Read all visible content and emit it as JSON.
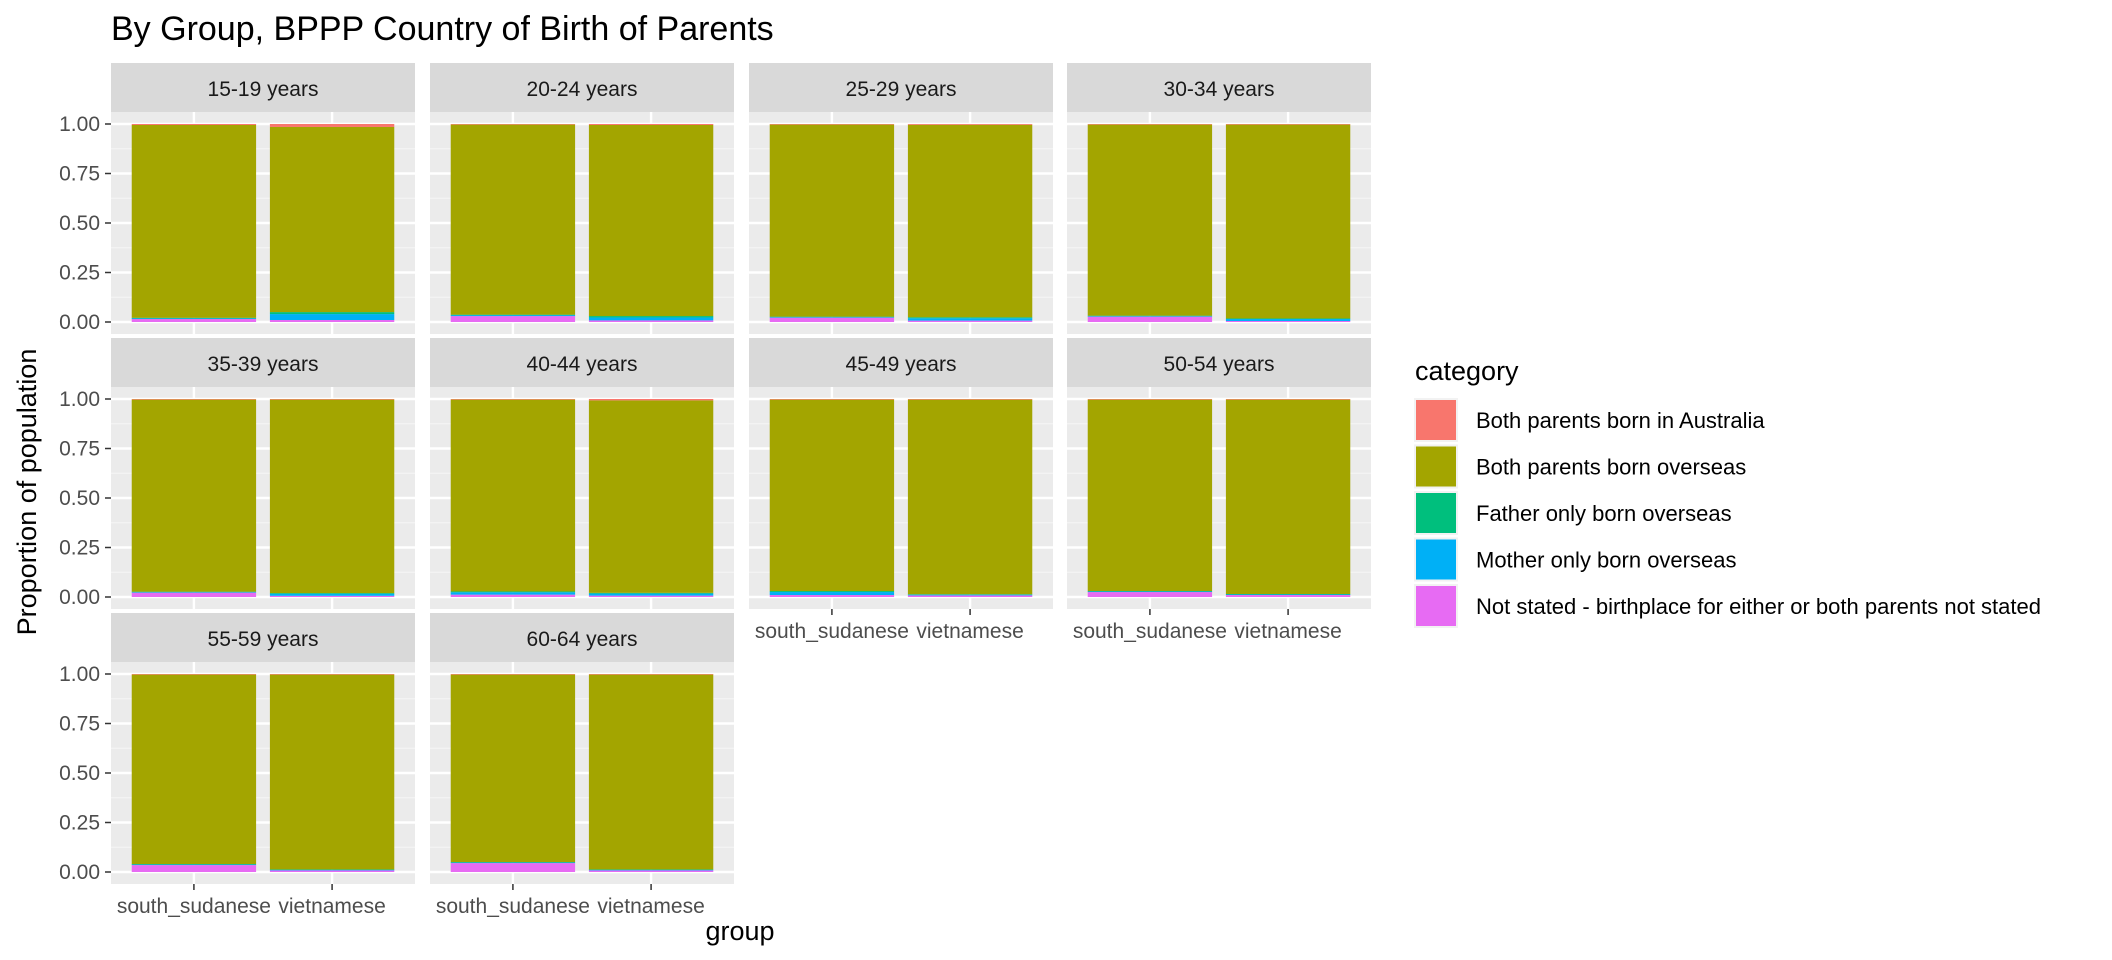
{
  "chart_data": {
    "type": "bar",
    "stacked": true,
    "title": "By Group,  BPPP Country of Birth of Parents",
    "xlabel": "group",
    "ylabel": "Proportion of population",
    "ylim": [
      0,
      1
    ],
    "yticks": [
      "0.00",
      "0.25",
      "0.50",
      "0.75",
      "1.00"
    ],
    "categories": [
      "south_sudanese",
      "vietnamese"
    ],
    "grid": true,
    "legend": {
      "title": "category",
      "position": "right",
      "entries": [
        {
          "label": "Both parents born in Australia",
          "color": "#F8766D"
        },
        {
          "label": "Both parents born overseas",
          "color": "#A3A500"
        },
        {
          "label": "Father only born overseas",
          "color": "#00BF7D"
        },
        {
          "label": "Mother only born overseas",
          "color": "#00B0F6"
        },
        {
          "label": "Not stated - birthplace for either or both parents not stated",
          "color": "#E76BF3"
        }
      ]
    },
    "stack_order": [
      "Not stated - birthplace for either or both parents not stated",
      "Mother only born overseas",
      "Father only born overseas",
      "Both parents born overseas",
      "Both parents born in Australia"
    ],
    "facets": [
      {
        "label": "15-19 years",
        "bars": [
          {
            "group": "south_sudanese",
            "values": {
              "Not stated - birthplace for either or both parents not stated": 0.015,
              "Mother only born overseas": 0.004,
              "Father only born overseas": 0.002,
              "Both parents born overseas": 0.974,
              "Both parents born in Australia": 0.005
            }
          },
          {
            "group": "vietnamese",
            "values": {
              "Not stated - birthplace for either or both parents not stated": 0.01,
              "Mother only born overseas": 0.03,
              "Father only born overseas": 0.01,
              "Both parents born overseas": 0.935,
              "Both parents born in Australia": 0.015
            }
          }
        ]
      },
      {
        "label": "20-24 years",
        "bars": [
          {
            "group": "south_sudanese",
            "values": {
              "Not stated - birthplace for either or both parents not stated": 0.03,
              "Mother only born overseas": 0.005,
              "Father only born overseas": 0.002,
              "Both parents born overseas": 0.96,
              "Both parents born in Australia": 0.003
            }
          },
          {
            "group": "vietnamese",
            "values": {
              "Not stated - birthplace for either or both parents not stated": 0.008,
              "Mother only born overseas": 0.015,
              "Father only born overseas": 0.007,
              "Both parents born overseas": 0.965,
              "Both parents born in Australia": 0.005
            }
          }
        ]
      },
      {
        "label": "25-29 years",
        "bars": [
          {
            "group": "south_sudanese",
            "values": {
              "Not stated - birthplace for either or both parents not stated": 0.022,
              "Mother only born overseas": 0.003,
              "Father only born overseas": 0.002,
              "Both parents born overseas": 0.97,
              "Both parents born in Australia": 0.003
            }
          },
          {
            "group": "vietnamese",
            "values": {
              "Not stated - birthplace for either or both parents not stated": 0.007,
              "Mother only born overseas": 0.012,
              "Father only born overseas": 0.005,
              "Both parents born overseas": 0.972,
              "Both parents born in Australia": 0.004
            }
          }
        ]
      },
      {
        "label": "30-34 years",
        "bars": [
          {
            "group": "south_sudanese",
            "values": {
              "Not stated - birthplace for either or both parents not stated": 0.027,
              "Mother only born overseas": 0.003,
              "Father only born overseas": 0.002,
              "Both parents born overseas": 0.965,
              "Both parents born in Australia": 0.003
            }
          },
          {
            "group": "vietnamese",
            "values": {
              "Not stated - birthplace for either or both parents not stated": 0.005,
              "Mother only born overseas": 0.01,
              "Father only born overseas": 0.003,
              "Both parents born overseas": 0.979,
              "Both parents born in Australia": 0.003
            }
          }
        ]
      },
      {
        "label": "35-39 years",
        "bars": [
          {
            "group": "south_sudanese",
            "values": {
              "Not stated - birthplace for either or both parents not stated": 0.022,
              "Mother only born overseas": 0.003,
              "Father only born overseas": 0.002,
              "Both parents born overseas": 0.97,
              "Both parents born in Australia": 0.003
            }
          },
          {
            "group": "vietnamese",
            "values": {
              "Not stated - birthplace for either or both parents not stated": 0.006,
              "Mother only born overseas": 0.01,
              "Father only born overseas": 0.004,
              "Both parents born overseas": 0.977,
              "Both parents born in Australia": 0.003
            }
          }
        ]
      },
      {
        "label": "40-44 years",
        "bars": [
          {
            "group": "south_sudanese",
            "values": {
              "Not stated - birthplace for either or both parents not stated": 0.012,
              "Mother only born overseas": 0.012,
              "Father only born overseas": 0.004,
              "Both parents born overseas": 0.969,
              "Both parents born in Australia": 0.003
            }
          },
          {
            "group": "vietnamese",
            "values": {
              "Not stated - birthplace for either or both parents not stated": 0.007,
              "Mother only born overseas": 0.01,
              "Father only born overseas": 0.004,
              "Both parents born overseas": 0.972,
              "Both parents born in Australia": 0.007
            }
          }
        ]
      },
      {
        "label": "45-49 years",
        "bars": [
          {
            "group": "south_sudanese",
            "values": {
              "Not stated - birthplace for either or both parents not stated": 0.01,
              "Mother only born overseas": 0.015,
              "Father only born overseas": 0.005,
              "Both parents born overseas": 0.967,
              "Both parents born in Australia": 0.003
            }
          },
          {
            "group": "vietnamese",
            "values": {
              "Not stated - birthplace for either or both parents not stated": 0.008,
              "Mother only born overseas": 0.004,
              "Father only born overseas": 0.002,
              "Both parents born overseas": 0.983,
              "Both parents born in Australia": 0.003
            }
          }
        ]
      },
      {
        "label": "50-54 years",
        "bars": [
          {
            "group": "south_sudanese",
            "values": {
              "Not stated - birthplace for either or both parents not stated": 0.025,
              "Mother only born overseas": 0.003,
              "Father only born overseas": 0.002,
              "Both parents born overseas": 0.967,
              "Both parents born in Australia": 0.003
            }
          },
          {
            "group": "vietnamese",
            "values": {
              "Not stated - birthplace for either or both parents not stated": 0.01,
              "Mother only born overseas": 0.003,
              "Father only born overseas": 0.002,
              "Both parents born overseas": 0.982,
              "Both parents born in Australia": 0.003
            }
          }
        ]
      },
      {
        "label": "55-59 years",
        "bars": [
          {
            "group": "south_sudanese",
            "values": {
              "Not stated - birthplace for either or both parents not stated": 0.035,
              "Mother only born overseas": 0.003,
              "Father only born overseas": 0.002,
              "Both parents born overseas": 0.957,
              "Both parents born in Australia": 0.003
            }
          },
          {
            "group": "vietnamese",
            "values": {
              "Not stated - birthplace for either or both parents not stated": 0.008,
              "Mother only born overseas": 0.003,
              "Father only born overseas": 0.002,
              "Both parents born overseas": 0.984,
              "Both parents born in Australia": 0.003
            }
          }
        ]
      },
      {
        "label": "60-64 years",
        "bars": [
          {
            "group": "south_sudanese",
            "values": {
              "Not stated - birthplace for either or both parents not stated": 0.045,
              "Mother only born overseas": 0.003,
              "Father only born overseas": 0.002,
              "Both parents born overseas": 0.947,
              "Both parents born in Australia": 0.003
            }
          },
          {
            "group": "vietnamese",
            "values": {
              "Not stated - birthplace for either or both parents not stated": 0.008,
              "Mother only born overseas": 0.003,
              "Father only born overseas": 0.002,
              "Both parents born overseas": 0.984,
              "Both parents born in Australia": 0.003
            }
          }
        ]
      }
    ]
  }
}
